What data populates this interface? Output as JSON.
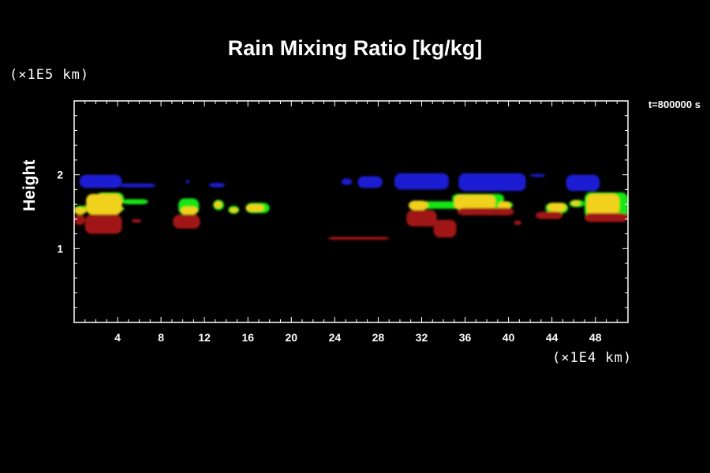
{
  "chart_data": {
    "type": "heatmap",
    "title": "Rain Mixing Ratio [kg/kg]",
    "ylabel": "Height",
    "xlabel": "",
    "x_scale_label": "(×1E4 km)",
    "y_scale_label": "(×1E5 km)",
    "time_label": "t=800000 s",
    "xlim": [
      0,
      51
    ],
    "ylim": [
      0,
      3
    ],
    "x_ticks": [
      "4",
      "8",
      "12",
      "16",
      "20",
      "24",
      "28",
      "32",
      "36",
      "40",
      "44",
      "48"
    ],
    "x_tick_values": [
      4,
      8,
      12,
      16,
      20,
      24,
      28,
      32,
      36,
      40,
      44,
      48
    ],
    "y_ticks": [
      "1",
      "2"
    ],
    "y_tick_values": [
      1,
      2
    ],
    "colors": {
      "blue": "#1a1ad2",
      "green": "#19e619",
      "yellow": "#f0d21e",
      "red": "#a01414"
    },
    "regions": [
      {
        "level": "blue",
        "x": [
          0.5,
          4.4
        ],
        "y": [
          1.82,
          2.0
        ]
      },
      {
        "level": "blue",
        "x": [
          4.2,
          7.5
        ],
        "y": [
          1.83,
          1.88
        ]
      },
      {
        "level": "blue",
        "x": [
          10.3,
          10.6
        ],
        "y": [
          1.88,
          1.93
        ]
      },
      {
        "level": "blue",
        "x": [
          12.4,
          13.9
        ],
        "y": [
          1.83,
          1.89
        ]
      },
      {
        "level": "blue",
        "x": [
          24.6,
          25.6
        ],
        "y": [
          1.86,
          1.95
        ]
      },
      {
        "level": "blue",
        "x": [
          26.1,
          28.4
        ],
        "y": [
          1.82,
          1.98
        ]
      },
      {
        "level": "blue",
        "x": [
          29.5,
          34.5
        ],
        "y": [
          1.8,
          2.02
        ]
      },
      {
        "level": "blue",
        "x": [
          35.4,
          41.6
        ],
        "y": [
          1.78,
          2.02
        ]
      },
      {
        "level": "blue",
        "x": [
          42.0,
          43.4
        ],
        "y": [
          1.97,
          2.01
        ]
      },
      {
        "level": "blue",
        "x": [
          45.3,
          48.4
        ],
        "y": [
          1.78,
          2.0
        ]
      },
      {
        "level": "green",
        "x": [
          0,
          4.6
        ],
        "y": [
          1.5,
          1.58
        ]
      },
      {
        "level": "green",
        "x": [
          2.0,
          4.6
        ],
        "y": [
          1.58,
          1.76
        ]
      },
      {
        "level": "green",
        "x": [
          4.4,
          6.8
        ],
        "y": [
          1.6,
          1.67
        ]
      },
      {
        "level": "green",
        "x": [
          9.6,
          11.5
        ],
        "y": [
          1.46,
          1.68
        ]
      },
      {
        "level": "green",
        "x": [
          12.8,
          13.8
        ],
        "y": [
          1.52,
          1.66
        ]
      },
      {
        "level": "green",
        "x": [
          14.2,
          15.2
        ],
        "y": [
          1.47,
          1.58
        ]
      },
      {
        "level": "green",
        "x": [
          15.8,
          18.0
        ],
        "y": [
          1.48,
          1.62
        ]
      },
      {
        "level": "green",
        "x": [
          30.8,
          40.4
        ],
        "y": [
          1.54,
          1.64
        ]
      },
      {
        "level": "green",
        "x": [
          34.8,
          39.6
        ],
        "y": [
          1.62,
          1.74
        ]
      },
      {
        "level": "green",
        "x": [
          43.4,
          45.5
        ],
        "y": [
          1.48,
          1.62
        ]
      },
      {
        "level": "green",
        "x": [
          45.6,
          47.0
        ],
        "y": [
          1.56,
          1.66
        ]
      },
      {
        "level": "green",
        "x": [
          47.0,
          51.0
        ],
        "y": [
          1.42,
          1.76
        ]
      },
      {
        "level": "yellow",
        "x": [
          0,
          1.1
        ],
        "y": [
          1.46,
          1.56
        ]
      },
      {
        "level": "yellow",
        "x": [
          1.1,
          4.4
        ],
        "y": [
          1.46,
          1.74
        ]
      },
      {
        "level": "yellow",
        "x": [
          9.8,
          11.4
        ],
        "y": [
          1.46,
          1.57
        ]
      },
      {
        "level": "yellow",
        "x": [
          12.9,
          13.6
        ],
        "y": [
          1.55,
          1.64
        ]
      },
      {
        "level": "yellow",
        "x": [
          14.3,
          15.1
        ],
        "y": [
          1.49,
          1.55
        ]
      },
      {
        "level": "yellow",
        "x": [
          15.8,
          17.5
        ],
        "y": [
          1.5,
          1.6
        ]
      },
      {
        "level": "yellow",
        "x": [
          30.8,
          32.6
        ],
        "y": [
          1.52,
          1.65
        ]
      },
      {
        "level": "yellow",
        "x": [
          35.0,
          38.8
        ],
        "y": [
          1.52,
          1.73
        ]
      },
      {
        "level": "yellow",
        "x": [
          39.0,
          40.2
        ],
        "y": [
          1.52,
          1.64
        ]
      },
      {
        "level": "yellow",
        "x": [
          43.6,
          45.3
        ],
        "y": [
          1.5,
          1.62
        ]
      },
      {
        "level": "yellow",
        "x": [
          45.8,
          46.6
        ],
        "y": [
          1.58,
          1.65
        ]
      },
      {
        "level": "yellow",
        "x": [
          47.2,
          50.2
        ],
        "y": [
          1.45,
          1.74
        ]
      },
      {
        "level": "red",
        "x": [
          0,
          1.0
        ],
        "y": [
          1.32,
          1.46
        ]
      },
      {
        "level": "red",
        "x": [
          1.0,
          4.4
        ],
        "y": [
          1.2,
          1.46
        ]
      },
      {
        "level": "red",
        "x": [
          5.3,
          6.2
        ],
        "y": [
          1.35,
          1.4
        ]
      },
      {
        "level": "red",
        "x": [
          9.1,
          11.6
        ],
        "y": [
          1.27,
          1.46
        ]
      },
      {
        "level": "red",
        "x": [
          23.4,
          29.0
        ],
        "y": [
          1.12,
          1.16
        ]
      },
      {
        "level": "red",
        "x": [
          30.6,
          33.4
        ],
        "y": [
          1.3,
          1.52
        ]
      },
      {
        "level": "red",
        "x": [
          33.1,
          35.2
        ],
        "y": [
          1.15,
          1.39
        ]
      },
      {
        "level": "red",
        "x": [
          35.3,
          40.5
        ],
        "y": [
          1.45,
          1.55
        ]
      },
      {
        "level": "red",
        "x": [
          40.5,
          41.2
        ],
        "y": [
          1.32,
          1.38
        ]
      },
      {
        "level": "red",
        "x": [
          42.5,
          45.0
        ],
        "y": [
          1.4,
          1.5
        ]
      },
      {
        "level": "red",
        "x": [
          47.0,
          51.0
        ],
        "y": [
          1.36,
          1.48
        ]
      }
    ]
  }
}
